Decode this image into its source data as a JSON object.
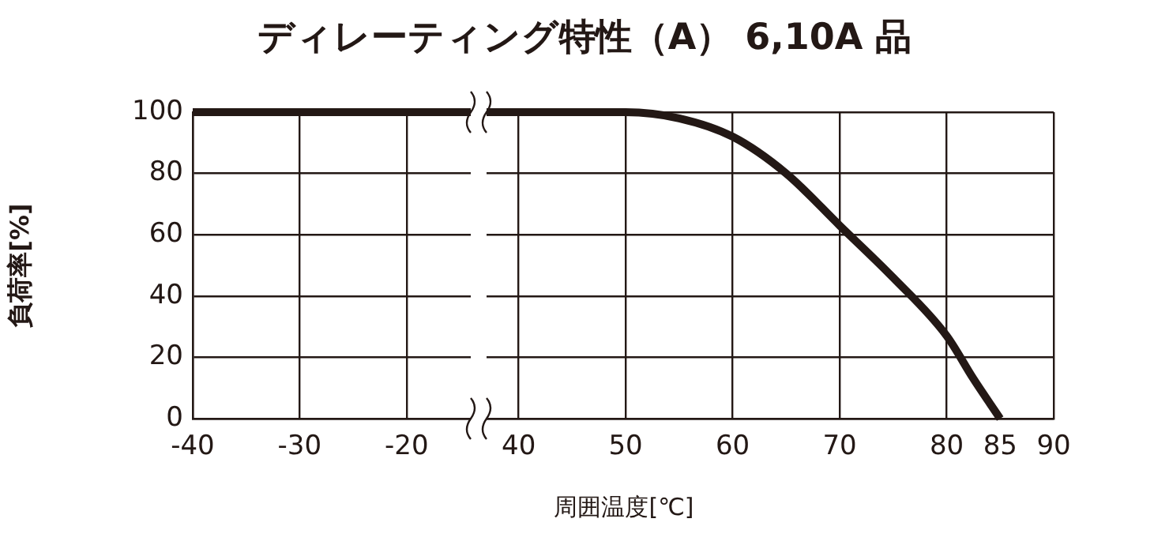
{
  "chart_data": [
    {
      "type": "line",
      "title": "ディレーティング特性（A） 6,10A 品",
      "xlabel": "周囲温度[℃]",
      "ylabel": "負荷率[%]",
      "series": [
        {
          "color": "#231815",
          "x": [
            -40,
            -30,
            -20,
            -14
          ],
          "values": [
            100,
            100,
            100,
            100
          ]
        }
      ],
      "xlim": [
        -40,
        -14
      ],
      "xticks": [
        -40,
        -30,
        -20
      ],
      "ylim": [
        0,
        100
      ],
      "yticks": [
        0,
        20,
        40,
        60,
        80,
        100
      ],
      "grid": true,
      "legend": false,
      "marker": "none",
      "line_style": "solid"
    },
    {
      "type": "line",
      "series": [
        {
          "color": "#231815",
          "x": [
            37,
            40,
            50,
            55,
            60,
            65,
            70,
            75,
            80,
            82.5,
            85
          ],
          "values": [
            100,
            100,
            100,
            98,
            92,
            80,
            63,
            46,
            27,
            13,
            0
          ]
        }
      ],
      "xlim": [
        37,
        90
      ],
      "xticks": [
        40,
        50,
        60,
        70,
        80,
        85,
        90
      ],
      "ylim": [
        0,
        100
      ],
      "yticks": [
        0,
        20,
        40,
        60,
        80,
        100
      ],
      "tick_labels": "x",
      "grid": true,
      "legend": false,
      "marker": "none",
      "line_style": "solid"
    }
  ]
}
